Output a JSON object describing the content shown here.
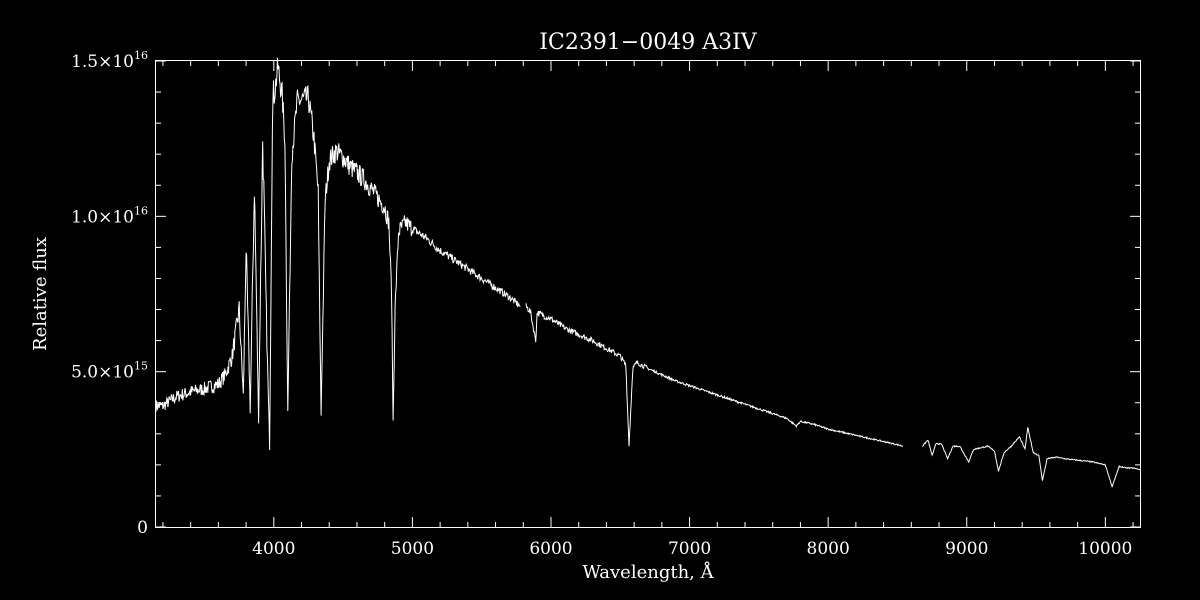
{
  "chart_data": {
    "type": "line",
    "title": "IC2391−0049   A3IV",
    "xlabel": "Wavelength, Å",
    "ylabel": "Relative flux",
    "xlim": [
      3150,
      10250
    ],
    "ylim": [
      0,
      1.5e+16
    ],
    "x_ticks": [
      4000,
      5000,
      6000,
      7000,
      8000,
      9000,
      10000
    ],
    "y_ticks": [
      {
        "value": 0,
        "mant": "0",
        "exp": ""
      },
      {
        "value": 5000000000000000.0,
        "mant": "5.0×10",
        "exp": "15"
      },
      {
        "value": 1e+16,
        "mant": "1.0×10",
        "exp": "16"
      },
      {
        "value": 1.5e+16,
        "mant": "1.5×10",
        "exp": "16"
      }
    ],
    "grid": false,
    "colors": {
      "background": "#000000",
      "line": "#ffffff",
      "axes": "#ffffff"
    },
    "series": [
      {
        "segments": [
          [
            [
              3150,
              3900000000000000.0
            ],
            [
              3200,
              3900000000000000.0
            ],
            [
              3300,
              4200000000000000.0
            ],
            [
              3400,
              4350000000000000.0
            ],
            [
              3500,
              4450000000000000.0
            ],
            [
              3600,
              4600000000000000.0
            ],
            [
              3650,
              4900000000000000.0
            ],
            [
              3700,
              5500000000000000.0
            ],
            [
              3750,
              7000000000000000.0
            ],
            [
              3780,
              4200000000000000.0
            ],
            [
              3800,
              9000000000000000.0
            ],
            [
              3830,
              3800000000000000.0
            ],
            [
              3860,
              1.1e+16
            ],
            [
              3890,
              3500000000000000.0
            ],
            [
              3920,
              1.25e+16
            ],
            [
              3950,
              6000000000000000.0
            ],
            [
              3970,
              2600000000000000.0
            ],
            [
              3990,
              1.35e+16
            ],
            [
              4030,
              1.48e+16
            ],
            [
              4060,
              1.39e+16
            ],
            [
              4080,
              1.25e+16
            ],
            [
              4101,
              3700000000000000.0
            ],
            [
              4130,
              1.2e+16
            ],
            [
              4170,
              1.37e+16
            ],
            [
              4250,
              1.38e+16
            ],
            [
              4290,
              1.25e+16
            ],
            [
              4320,
              1.08e+16
            ],
            [
              4341,
              3600000000000000.0
            ],
            [
              4370,
              1.05e+16
            ],
            [
              4400,
              1.18e+16
            ],
            [
              4450,
              1.21e+16
            ],
            [
              4500,
              1.19e+16
            ],
            [
              4550,
              1.16e+16
            ],
            [
              4600,
              1.14e+16
            ],
            [
              4650,
              1.12e+16
            ],
            [
              4700,
              1.09e+16
            ],
            [
              4750,
              1.06e+16
            ],
            [
              4800,
              1.03e+16
            ],
            [
              4830,
              9800000000000000.0
            ],
            [
              4850,
              7500000000000000.0
            ],
            [
              4861,
              3400000000000000.0
            ],
            [
              4875,
              7000000000000000.0
            ],
            [
              4900,
              9500000000000000.0
            ],
            [
              4950,
              9800000000000000.0
            ],
            [
              5000,
              9600000000000000.0
            ],
            [
              5100,
              9300000000000000.0
            ],
            [
              5200,
              8900000000000000.0
            ],
            [
              5300,
              8600000000000000.0
            ],
            [
              5400,
              8300000000000000.0
            ],
            [
              5500,
              8000000000000000.0
            ],
            [
              5600,
              7700000000000000.0
            ],
            [
              5700,
              7400000000000000.0
            ],
            [
              5780,
              7100000000000000.0
            ]
          ],
          [
            [
              5820,
              7100000000000000.0
            ],
            [
              5850,
              6950000000000000.0
            ],
            [
              5890,
              6000000000000000.0
            ],
            [
              5900,
              6900000000000000.0
            ],
            [
              6000,
              6700000000000000.0
            ],
            [
              6100,
              6400000000000000.0
            ],
            [
              6200,
              6200000000000000.0
            ],
            [
              6300,
              6000000000000000.0
            ],
            [
              6400,
              5750000000000000.0
            ],
            [
              6500,
              5500000000000000.0
            ],
            [
              6540,
              5200000000000000.0
            ],
            [
              6563,
              2600000000000000.0
            ],
            [
              6590,
              5100000000000000.0
            ],
            [
              6620,
              5300000000000000.0
            ],
            [
              6700,
              5100000000000000.0
            ],
            [
              6800,
              4900000000000000.0
            ],
            [
              6900,
              4700000000000000.0
            ],
            [
              7000,
              4550000000000000.0
            ],
            [
              7100,
              4400000000000000.0
            ],
            [
              7200,
              4250000000000000.0
            ],
            [
              7300,
              4100000000000000.0
            ],
            [
              7400,
              3950000000000000.0
            ],
            [
              7500,
              3800000000000000.0
            ],
            [
              7600,
              3650000000000000.0
            ],
            [
              7700,
              3500000000000000.0
            ],
            [
              7770,
              3250000000000000.0
            ],
            [
              7800,
              3400000000000000.0
            ],
            [
              7900,
              3300000000000000.0
            ],
            [
              8000,
              3150000000000000.0
            ],
            [
              8100,
              3050000000000000.0
            ],
            [
              8200,
              2950000000000000.0
            ],
            [
              8300,
              2850000000000000.0
            ],
            [
              8400,
              2750000000000000.0
            ],
            [
              8500,
              2650000000000000.0
            ],
            [
              8540,
              2600000000000000.0
            ]
          ],
          [
            [
              8680,
              2600000000000000.0
            ],
            [
              8720,
              2800000000000000.0
            ],
            [
              8750,
              2300000000000000.0
            ],
            [
              8780,
              2700000000000000.0
            ],
            [
              8820,
              2650000000000000.0
            ],
            [
              8862,
              2200000000000000.0
            ],
            [
              8900,
              2600000000000000.0
            ],
            [
              8950,
              2600000000000000.0
            ],
            [
              9014,
              2100000000000000.0
            ],
            [
              9050,
              2500000000000000.0
            ],
            [
              9100,
              2550000000000000.0
            ],
            [
              9150,
              2600000000000000.0
            ],
            [
              9200,
              2450000000000000.0
            ],
            [
              9229,
              1800000000000000.0
            ],
            [
              9270,
              2400000000000000.0
            ],
            [
              9320,
              2600000000000000.0
            ],
            [
              9380,
              2900000000000000.0
            ],
            [
              9420,
              2500000000000000.0
            ],
            [
              9440,
              3200000000000000.0
            ],
            [
              9480,
              2400000000000000.0
            ],
            [
              9520,
              2300000000000000.0
            ],
            [
              9546,
              1500000000000000.0
            ],
            [
              9580,
              2200000000000000.0
            ],
            [
              9650,
              2250000000000000.0
            ],
            [
              9700,
              2200000000000000.0
            ],
            [
              9800,
              2150000000000000.0
            ],
            [
              9900,
              2100000000000000.0
            ],
            [
              10000,
              2000000000000000.0
            ],
            [
              10049,
              1300000000000000.0
            ],
            [
              10100,
              1950000000000000.0
            ],
            [
              10150,
              1900000000000000.0
            ],
            [
              10200,
              1900000000000000.0
            ],
            [
              10250,
              1850000000000000.0
            ]
          ]
        ]
      }
    ]
  }
}
